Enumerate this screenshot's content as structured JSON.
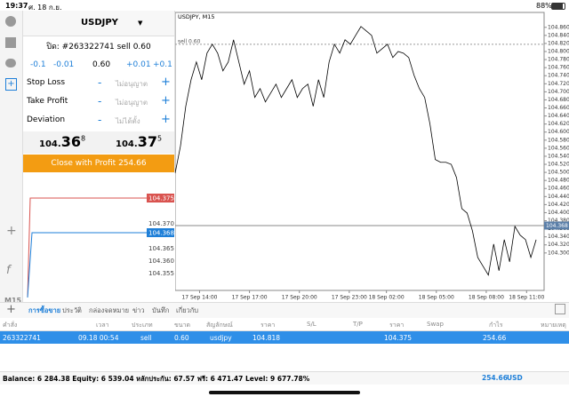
{
  "status_bar": {
    "time": "19:37",
    "date": "ศ. 18 ก.ย.",
    "battery": "88%"
  },
  "order_panel": {
    "symbol": "USDJPY",
    "close_order": "ปิด: #263322741 sell 0.60",
    "volume_steps": [
      "-0.1",
      "-0.01",
      "0.60",
      "+0.01",
      "+0.1"
    ],
    "rows": [
      {
        "label": "Stop Loss",
        "value": "ไม่อนุญาต"
      },
      {
        "label": "Take Profit",
        "value": "ไม่อนุญาต"
      },
      {
        "label": "Deviation",
        "value": "ไม่ได้ตั้ง"
      }
    ],
    "bid": {
      "small": "104.",
      "big": "36",
      "sup": "8"
    },
    "ask": {
      "small": "104.",
      "big": "37",
      "sup": "5"
    },
    "close_button": "Close with Profit 254.66"
  },
  "mini_chart": {
    "ask_label": "104.375",
    "bid_label": "104.368",
    "price_labels": [
      "104.370",
      "104.365",
      "104.360",
      "104.355"
    ]
  },
  "toolbar": {
    "timeframe": "M15"
  },
  "chart_data": {
    "type": "line",
    "title": "USDJPY, M15",
    "color": "#000000",
    "values": [
      104.498,
      104.565,
      104.664,
      104.73,
      104.774,
      104.73,
      104.796,
      104.818,
      104.796,
      104.752,
      104.774,
      104.829,
      104.774,
      104.719,
      104.752,
      104.686,
      104.708,
      104.675,
      104.697,
      104.719,
      104.686,
      104.708,
      104.73,
      104.686,
      104.708,
      104.719,
      104.664,
      104.73,
      104.686,
      104.774,
      104.818,
      104.796,
      104.829,
      104.818,
      104.84,
      104.862,
      104.851,
      104.84,
      104.796,
      104.807,
      104.818,
      104.785,
      104.8,
      104.796,
      104.785,
      104.741,
      104.708,
      104.686,
      104.62,
      104.532,
      104.525,
      104.525,
      104.52,
      104.487,
      104.41,
      104.399,
      104.355,
      104.289,
      104.267,
      104.245,
      104.322,
      104.256,
      104.333,
      104.278,
      104.366,
      104.344,
      104.333,
      104.289,
      104.333
    ],
    "xlim": [
      0,
      69.5
    ],
    "xticks": [
      {
        "value": 4.6,
        "label": "17 Sep 14:00"
      },
      {
        "value": 14,
        "label": "17 Sep 17:00"
      },
      {
        "value": 23.4,
        "label": "17 Sep 20:00"
      },
      {
        "value": 32.8,
        "label": "17 Sep 23:00"
      },
      {
        "value": 39.8,
        "label": "18 Sep 02:00"
      },
      {
        "value": 49.2,
        "label": "18 Sep 05:00"
      },
      {
        "value": 58.6,
        "label": "18 Sep 08:00"
      },
      {
        "value": 66.2,
        "label": "18 Sep 11:00"
      }
    ],
    "ylim": [
      104.207,
      104.897
    ],
    "yticks": [
      {
        "value": 104.86,
        "label": "104.860"
      },
      {
        "value": 104.84,
        "label": "104.840"
      },
      {
        "value": 104.82,
        "label": "104.820"
      },
      {
        "value": 104.8,
        "label": "104.800"
      },
      {
        "value": 104.78,
        "label": "104.780"
      },
      {
        "value": 104.76,
        "label": "104.760"
      },
      {
        "value": 104.74,
        "label": "104.740"
      },
      {
        "value": 104.72,
        "label": "104.720"
      },
      {
        "value": 104.7,
        "label": "104.700"
      },
      {
        "value": 104.68,
        "label": "104.680"
      },
      {
        "value": 104.66,
        "label": "104.660"
      },
      {
        "value": 104.64,
        "label": "104.640"
      },
      {
        "value": 104.62,
        "label": "104.620"
      },
      {
        "value": 104.6,
        "label": "104.600"
      },
      {
        "value": 104.58,
        "label": "104.580"
      },
      {
        "value": 104.56,
        "label": "104.560"
      },
      {
        "value": 104.54,
        "label": "104.540"
      },
      {
        "value": 104.52,
        "label": "104.520"
      },
      {
        "value": 104.5,
        "label": "104.500"
      },
      {
        "value": 104.48,
        "label": "104.480"
      },
      {
        "value": 104.46,
        "label": "104.460"
      },
      {
        "value": 104.44,
        "label": "104.440"
      },
      {
        "value": 104.42,
        "label": "104.420"
      },
      {
        "value": 104.4,
        "label": "104.400"
      },
      {
        "value": 104.38,
        "label": "104.380"
      },
      {
        "value": 104.36,
        "label": "104.360"
      },
      {
        "value": 104.34,
        "label": "104.340"
      },
      {
        "value": 104.32,
        "label": "104.320"
      },
      {
        "value": 104.3,
        "label": "104.300"
      }
    ],
    "sell_line": {
      "value": 104.818,
      "label": "sell 0.60"
    },
    "current_price": {
      "value": 104.368,
      "label": "104.368"
    }
  },
  "tabs": [
    "การซื้อขาย",
    "ประวัติ",
    "กล่องจดหมาย",
    "ข่าว",
    "บันทึก",
    "เกี่ยวกับ"
  ],
  "table": {
    "headers": [
      "คำสั่ง",
      "เวลา",
      "ประเภท",
      "ขนาด",
      "สัญลักษณ์",
      "ราคา",
      "S/L",
      "T/P",
      "ราคา",
      "Swap",
      "กำไร",
      "หมายเหตุ"
    ],
    "row": {
      "order": "263322741",
      "time": "09.18 00:54",
      "type": "sell",
      "volume": "0.60",
      "symbol": "usdjpy",
      "open_price": "104.818",
      "price": "104.375",
      "profit": "254.66"
    }
  },
  "footer": {
    "summary": "Balance: 6 284.38 Equity: 6 539.04 หลักประกัน: 67.57 ฟรี: 6 471.47 Level: 9 677.78%",
    "profit": "254.66",
    "currency": "USD"
  }
}
